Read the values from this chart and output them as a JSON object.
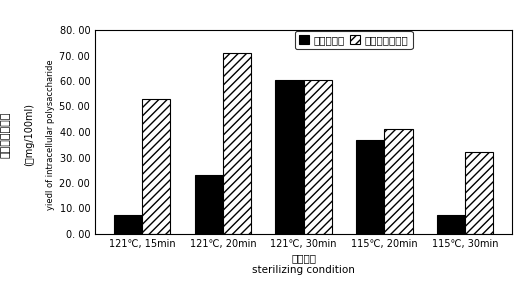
{
  "categories": [
    "121℃, 15min",
    "121℃, 20min",
    "121℃, 30min",
    "115℃, 20min",
    "115℃, 30min"
  ],
  "series1_label": "混合后灬谷",
  "series2_label": "分别灬谷后混合",
  "series1_values": [
    7.5,
    23.0,
    60.5,
    37.0,
    7.5
  ],
  "series2_values": [
    53.0,
    71.0,
    60.5,
    41.0,
    32.0
  ],
  "bar_color1": "#000000",
  "bar_color2": "#ffffff",
  "hatch2": "////",
  "ylim": [
    0,
    80
  ],
  "yticks": [
    0,
    10,
    20,
    30,
    40,
    50,
    60,
    70,
    80
  ],
  "ytick_labels": [
    "0. 00",
    "10. 00",
    "20. 00",
    "30. 00",
    "40. 00",
    "50. 00",
    "60. 00",
    "70. 00",
    "80. 00"
  ],
  "ylabel_cn": "胸内粗多糖含量",
  "ylabel_unit": "(ｭmg/100ml)",
  "ylabel_en": "yiedl of intracellular polysaccharide",
  "xlabel_cn": "灬谷条件",
  "xlabel_en": "sterilizing condition",
  "bar_width": 0.35,
  "edgecolor": "#000000",
  "background_color": "#ffffff",
  "legend_edgecolor": "#000000"
}
